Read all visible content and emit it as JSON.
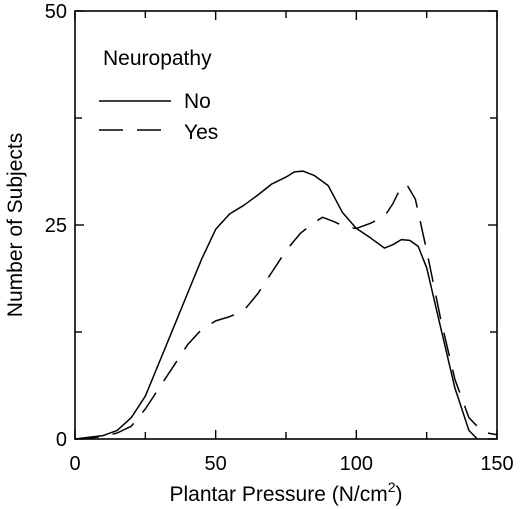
{
  "chart_data": {
    "type": "line",
    "xlabel": "Plantar Pressure (N/cm",
    "xlabel_sup": "2",
    "xlabel_tail": ")",
    "ylabel": "Number of Subjects",
    "xlim": [
      0,
      150
    ],
    "ylim": [
      0,
      50
    ],
    "x_ticks": [
      0,
      50,
      100,
      150
    ],
    "y_ticks": [
      0,
      25,
      50
    ],
    "x_tick_labels": [
      "0",
      "50",
      "100",
      "150"
    ],
    "y_tick_labels": [
      "0",
      "25",
      "50"
    ],
    "grid": false,
    "legend": {
      "title": "Neuropathy",
      "placement": "top-left"
    },
    "series": [
      {
        "name": "No",
        "dash": "solid",
        "x": [
          0,
          5,
          10,
          15,
          20,
          25,
          30,
          35,
          40,
          45,
          50,
          55,
          60,
          65,
          70,
          75,
          78,
          81,
          85,
          90,
          95,
          100,
          105,
          110,
          113,
          116,
          119,
          122,
          125,
          130,
          135,
          140,
          143
        ],
        "y": [
          0,
          0.2,
          0.4,
          1,
          2.5,
          5,
          9,
          13,
          17,
          21,
          24.5,
          26.3,
          27.3,
          28.5,
          29.8,
          30.6,
          31.2,
          31.3,
          30.8,
          29.6,
          26.5,
          24.6,
          23.5,
          22.3,
          22.7,
          23.3,
          23.2,
          22.5,
          20,
          13,
          6,
          1,
          0
        ]
      },
      {
        "name": "Yes",
        "dash": "dashed",
        "x": [
          0,
          5,
          10,
          15,
          20,
          25,
          30,
          35,
          40,
          45,
          50,
          55,
          60,
          65,
          70,
          75,
          80,
          85,
          88,
          92,
          96,
          100,
          105,
          110,
          113,
          116,
          118,
          121,
          125,
          130,
          135,
          140,
          145,
          150
        ],
        "y": [
          0,
          0.1,
          0.3,
          0.7,
          1.5,
          3.5,
          6,
          8.5,
          11,
          12.8,
          13.8,
          14.3,
          15,
          17,
          19.5,
          22,
          24,
          25.3,
          25.9,
          25.4,
          24.8,
          24.6,
          25.2,
          26,
          27.5,
          29.5,
          29.7,
          28,
          22,
          14,
          7,
          2.5,
          0.8,
          0.5
        ]
      }
    ]
  }
}
